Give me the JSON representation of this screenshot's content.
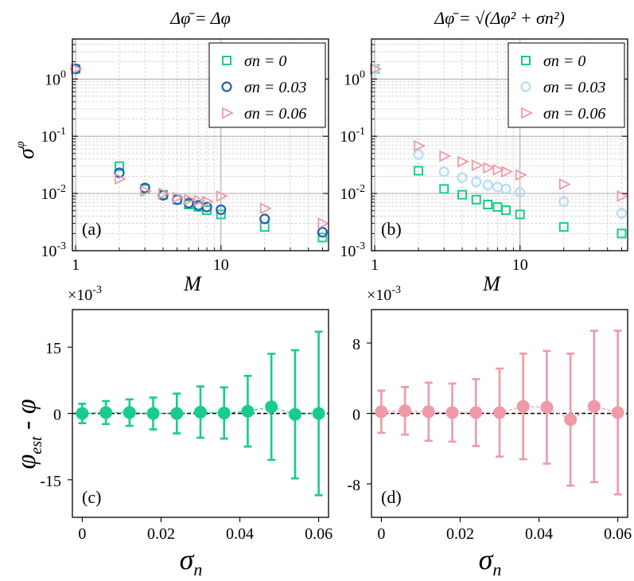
{
  "colors": {
    "green": "#18cc8c",
    "blue": "#1f5fb5",
    "lightblue": "#b7dbf5",
    "pink": "#ef9aa6"
  },
  "chart_data": [
    {
      "panel_label": "(a)",
      "type": "scatter",
      "title": "Δφ̄ = Δφ",
      "xlabel": "M",
      "ylabel": "σ",
      "ylabel_sup": "φ",
      "xscale": "log",
      "yscale": "log",
      "xlim": [
        0.95,
        55
      ],
      "ylim": [
        0.001,
        5
      ],
      "xticks": [
        {
          "v": 1,
          "label": "1"
        },
        {
          "v": 10,
          "label": "10"
        }
      ],
      "yticks": [
        {
          "v": 0.001,
          "base": "10",
          "exp": "-3"
        },
        {
          "v": 0.01,
          "base": "10",
          "exp": "-2"
        },
        {
          "v": 0.1,
          "base": "10",
          "exp": "-1"
        },
        {
          "v": 1,
          "base": "10",
          "exp": "0"
        }
      ],
      "legend_loc": "top-right",
      "series": [
        {
          "name": "σn = 0",
          "marker": "square",
          "color": "#18cc8c",
          "M": [
            1,
            2,
            3,
            4,
            5,
            6,
            7,
            8,
            10,
            20,
            50
          ],
          "values": [
            1.5,
            0.03,
            0.012,
            0.0095,
            0.0078,
            0.0064,
            0.0058,
            0.0051,
            0.0043,
            0.0026,
            0.0017
          ]
        },
        {
          "name": "σn = 0.03",
          "marker": "circle",
          "color": "#1f5fb5",
          "M": [
            1,
            2,
            3,
            4,
            5,
            6,
            7,
            8,
            10,
            20,
            50
          ],
          "values": [
            1.5,
            0.023,
            0.0125,
            0.0093,
            0.0078,
            0.0068,
            0.0062,
            0.0058,
            0.0052,
            0.0036,
            0.0021
          ]
        },
        {
          "name": "σn = 0.06",
          "marker": "triangle-right",
          "color": "#ef9aa6",
          "M": [
            1,
            2,
            3,
            4,
            5,
            6,
            7,
            8,
            10,
            20,
            50
          ],
          "values": [
            1.5,
            0.018,
            0.011,
            0.01,
            0.0085,
            0.0078,
            0.0075,
            0.0072,
            0.009,
            0.0055,
            0.003
          ]
        }
      ]
    },
    {
      "panel_label": "(b)",
      "type": "scatter",
      "title": "Δφ̄ = √(Δφ² + σn²)",
      "xlabel": "M",
      "xscale": "log",
      "yscale": "log",
      "xlim": [
        0.95,
        55
      ],
      "ylim": [
        0.001,
        5
      ],
      "xticks": [
        {
          "v": 1,
          "label": "1"
        },
        {
          "v": 10,
          "label": "10"
        }
      ],
      "yticks": [
        {
          "v": 0.001,
          "base": "10",
          "exp": "-3"
        },
        {
          "v": 0.01,
          "base": "10",
          "exp": "-2"
        },
        {
          "v": 0.1,
          "base": "10",
          "exp": "-1"
        },
        {
          "v": 1,
          "base": "10",
          "exp": "0"
        }
      ],
      "legend_loc": "top-right",
      "series": [
        {
          "name": "σn = 0",
          "marker": "square",
          "color": "#18cc8c",
          "M": [
            1,
            2,
            3,
            4,
            5,
            6,
            7,
            8,
            10,
            20,
            50
          ],
          "values": [
            1.5,
            0.025,
            0.012,
            0.0095,
            0.0078,
            0.0064,
            0.0058,
            0.0051,
            0.0043,
            0.0026,
            0.002
          ]
        },
        {
          "name": "σn = 0.03",
          "marker": "circle",
          "color": "#b7dbf5",
          "M": [
            1,
            2,
            3,
            4,
            5,
            6,
            7,
            8,
            10,
            20,
            50
          ],
          "values": [
            1.5,
            0.048,
            0.024,
            0.019,
            0.016,
            0.014,
            0.013,
            0.012,
            0.0105,
            0.0072,
            0.0045
          ]
        },
        {
          "name": "σn = 0.06",
          "marker": "triangle-right",
          "color": "#ef9aa6",
          "M": [
            1,
            2,
            3,
            4,
            5,
            6,
            7,
            8,
            10,
            20,
            50
          ],
          "values": [
            1.5,
            0.068,
            0.045,
            0.036,
            0.031,
            0.028,
            0.026,
            0.024,
            0.021,
            0.0145,
            0.009
          ]
        }
      ]
    },
    {
      "panel_label": "(c)",
      "type": "errorbar",
      "xlabel": "σ",
      "xlabel_sub": "n",
      "ylabel": "φ",
      "ylabel_sub": "est",
      "ylabel_suffix": " - φ",
      "y_multiplier": "×10",
      "y_multiplier_exp": "-3",
      "xlim": [
        -0.0025,
        0.0625
      ],
      "ylim": [
        -23.5,
        23.5
      ],
      "xticks": [
        {
          "v": 0,
          "label": "0"
        },
        {
          "v": 0.02,
          "label": "0.02"
        },
        {
          "v": 0.04,
          "label": "0.04"
        },
        {
          "v": 0.06,
          "label": "0.06"
        }
      ],
      "yticks": [
        {
          "v": -15,
          "label": "-15"
        },
        {
          "v": 0,
          "label": "0"
        },
        {
          "v": 15,
          "label": "15"
        }
      ],
      "zero_line": true,
      "color": "#18cc8c",
      "x": [
        0,
        0.006,
        0.012,
        0.018,
        0.024,
        0.03,
        0.036,
        0.042,
        0.048,
        0.054,
        0.06
      ],
      "values": [
        0.0,
        0.2,
        0.2,
        0.0,
        0.0,
        0.3,
        0.1,
        0.5,
        1.5,
        -0.2,
        0.0
      ],
      "errors": [
        2.2,
        2.6,
        3.0,
        3.6,
        4.5,
        5.8,
        5.8,
        8.0,
        12.0,
        14.5,
        18.5
      ]
    },
    {
      "panel_label": "(d)",
      "type": "errorbar",
      "xlabel": "σ",
      "xlabel_sub": "n",
      "y_multiplier": "×10",
      "y_multiplier_exp": "-3",
      "xlim": [
        -0.0025,
        0.0625
      ],
      "ylim": [
        -11.8,
        11.8
      ],
      "xticks": [
        {
          "v": 0,
          "label": "0"
        },
        {
          "v": 0.02,
          "label": "0.02"
        },
        {
          "v": 0.04,
          "label": "0.04"
        },
        {
          "v": 0.06,
          "label": "0.06"
        }
      ],
      "yticks": [
        {
          "v": -8,
          "label": "-8"
        },
        {
          "v": 0,
          "label": "0"
        },
        {
          "v": 8,
          "label": "8"
        }
      ],
      "zero_line": true,
      "color": "#ef9aa6",
      "x": [
        0,
        0.006,
        0.012,
        0.018,
        0.024,
        0.03,
        0.036,
        0.042,
        0.048,
        0.054,
        0.06
      ],
      "values": [
        0.2,
        0.3,
        0.2,
        0.1,
        0.1,
        0.1,
        0.8,
        0.7,
        -0.7,
        0.8,
        0.1
      ],
      "errors": [
        2.4,
        2.7,
        3.3,
        3.3,
        3.8,
        5.0,
        6.0,
        6.4,
        7.5,
        8.6,
        9.3
      ]
    }
  ]
}
